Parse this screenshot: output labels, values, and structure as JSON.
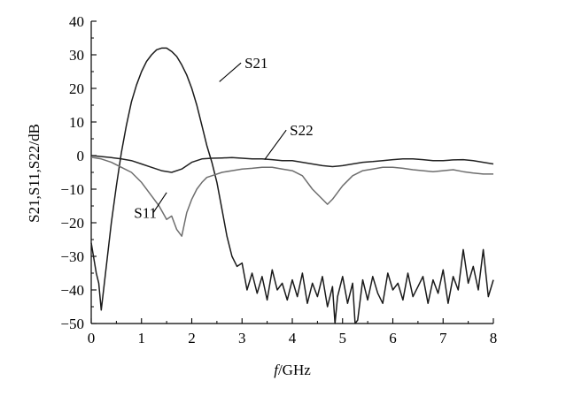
{
  "chart_data": {
    "type": "line",
    "xlabel_italic": "f",
    "xlabel_rest": "/GHz",
    "ylabel": "S21,S11,S22/dB",
    "xlim": [
      0,
      8
    ],
    "ylim": [
      -50,
      40
    ],
    "xticks": [
      "0",
      "1",
      "2",
      "3",
      "4",
      "5",
      "6",
      "7",
      "8"
    ],
    "yticks": [
      "40",
      "30",
      "20",
      "10",
      "0",
      "−10",
      "−20",
      "−30",
      "−40",
      "−50"
    ],
    "grid": false,
    "legend": "none (inline callout labels)",
    "series": [
      {
        "name": "S21",
        "color": "#1a1a1a",
        "x": [
          0,
          0.1,
          0.15,
          0.2,
          0.3,
          0.4,
          0.5,
          0.6,
          0.7,
          0.8,
          0.9,
          1.0,
          1.1,
          1.2,
          1.3,
          1.4,
          1.5,
          1.6,
          1.7,
          1.8,
          1.9,
          2.0,
          2.1,
          2.2,
          2.3,
          2.4,
          2.5,
          2.6,
          2.7,
          2.8,
          2.9,
          3.0,
          3.1,
          3.2,
          3.3,
          3.4,
          3.5,
          3.6,
          3.7,
          3.8,
          3.9,
          4.0,
          4.1,
          4.2,
          4.3,
          4.4,
          4.5,
          4.6,
          4.7,
          4.8,
          4.85,
          4.9,
          5.0,
          5.1,
          5.2,
          5.25,
          5.3,
          5.4,
          5.5,
          5.6,
          5.7,
          5.8,
          5.9,
          6.0,
          6.1,
          6.2,
          6.3,
          6.4,
          6.5,
          6.6,
          6.7,
          6.8,
          6.9,
          7.0,
          7.1,
          7.2,
          7.3,
          7.4,
          7.5,
          7.6,
          7.7,
          7.8,
          7.9,
          8.0
        ],
        "values": [
          -26,
          -35,
          -38,
          -46,
          -33,
          -20,
          -9,
          1,
          9,
          16,
          21,
          25,
          28,
          30,
          31.5,
          32,
          32,
          31,
          29.5,
          27,
          24,
          20,
          15,
          9,
          3,
          -2,
          -8,
          -16,
          -24,
          -30,
          -33,
          -32,
          -40,
          -35,
          -41,
          -36,
          -43,
          -34,
          -40,
          -38,
          -43,
          -37,
          -42,
          -35,
          -44,
          -38,
          -42,
          -36,
          -45,
          -39,
          -50,
          -42,
          -36,
          -44,
          -38,
          -50,
          -49,
          -37,
          -43,
          -36,
          -41,
          -44,
          -35,
          -40,
          -38,
          -43,
          -35,
          -42,
          -39,
          -36,
          -44,
          -37,
          -41,
          -34,
          -44,
          -36,
          -40,
          -28,
          -38,
          -33,
          -40,
          -28,
          -42,
          -37
        ]
      },
      {
        "name": "S22",
        "color": "#222222",
        "x": [
          0,
          0.2,
          0.4,
          0.6,
          0.8,
          1.0,
          1.2,
          1.4,
          1.6,
          1.8,
          2.0,
          2.2,
          2.4,
          2.6,
          2.8,
          3.0,
          3.2,
          3.4,
          3.6,
          3.8,
          4.0,
          4.2,
          4.4,
          4.6,
          4.8,
          5.0,
          5.2,
          5.4,
          5.6,
          5.8,
          6.0,
          6.2,
          6.4,
          6.6,
          6.8,
          7.0,
          7.2,
          7.4,
          7.6,
          7.8,
          8.0
        ],
        "values": [
          0,
          -0.3,
          -0.6,
          -1,
          -1.5,
          -2.5,
          -3.5,
          -4.5,
          -5,
          -4,
          -2,
          -1,
          -0.8,
          -0.7,
          -0.6,
          -0.8,
          -1,
          -1,
          -1.2,
          -1.5,
          -1.5,
          -2,
          -2.5,
          -3,
          -3.3,
          -3,
          -2.5,
          -2,
          -1.8,
          -1.5,
          -1.2,
          -1,
          -1,
          -1.2,
          -1.5,
          -1.5,
          -1.3,
          -1.2,
          -1.5,
          -2,
          -2.5
        ]
      },
      {
        "name": "S11",
        "color": "#6e6e6e",
        "x": [
          0,
          0.2,
          0.4,
          0.6,
          0.8,
          1.0,
          1.2,
          1.35,
          1.5,
          1.6,
          1.7,
          1.8,
          1.9,
          2.0,
          2.1,
          2.2,
          2.3,
          2.4,
          2.6,
          2.8,
          3.0,
          3.2,
          3.4,
          3.6,
          3.8,
          4.0,
          4.2,
          4.4,
          4.6,
          4.7,
          4.8,
          5.0,
          5.2,
          5.4,
          5.6,
          5.8,
          6.0,
          6.2,
          6.4,
          6.6,
          6.8,
          7.0,
          7.2,
          7.4,
          7.6,
          7.8,
          8.0
        ],
        "values": [
          -0.5,
          -1,
          -2,
          -3.5,
          -5,
          -8,
          -12,
          -15,
          -19,
          -18,
          -22,
          -24,
          -17,
          -13,
          -10,
          -8,
          -6.5,
          -6,
          -5,
          -4.5,
          -4,
          -3.8,
          -3.5,
          -3.5,
          -4,
          -4.5,
          -6,
          -10,
          -13,
          -14.5,
          -13,
          -9,
          -6,
          -4.5,
          -4,
          -3.5,
          -3.5,
          -3.8,
          -4.2,
          -4.5,
          -4.8,
          -4.5,
          -4.2,
          -4.8,
          -5.2,
          -5.5,
          -5.5
        ]
      }
    ],
    "annotations": [
      {
        "text": "S21",
        "series": "S21",
        "x": 2.55,
        "y": 22,
        "label_x": 3.05,
        "label_y": 26
      },
      {
        "text": "S22",
        "series": "S22",
        "x": 3.45,
        "y": -1.2,
        "label_x": 3.95,
        "label_y": 6
      },
      {
        "text": "S11",
        "series": "S11",
        "x": 1.5,
        "y": -11,
        "label_x": 0.85,
        "label_y": -18.5
      }
    ]
  }
}
